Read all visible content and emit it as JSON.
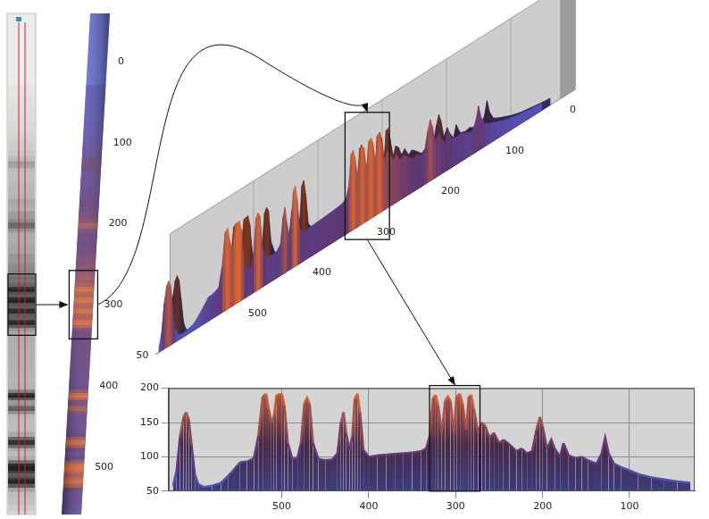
{
  "chart_data": {
    "type": "line",
    "x": [
      30,
      45,
      60,
      75,
      90,
      100,
      110,
      118,
      124,
      128,
      132,
      138,
      148,
      155,
      162,
      170,
      176,
      180,
      186,
      190,
      195,
      200,
      203,
      207,
      212,
      218,
      224,
      230,
      238,
      245,
      250,
      256,
      261,
      266,
      270,
      274,
      279,
      282,
      285,
      288,
      292,
      295,
      299,
      302,
      306,
      309,
      312,
      316,
      320,
      323,
      326,
      330,
      334,
      340,
      350,
      360,
      370,
      380,
      390,
      400,
      406,
      410,
      413,
      416,
      419,
      422,
      426,
      429,
      432,
      436,
      442,
      450,
      458,
      464,
      468,
      471,
      474,
      478,
      482,
      488,
      493,
      497,
      500,
      506,
      509,
      512,
      515,
      518,
      522,
      527,
      532,
      540,
      548,
      556,
      562,
      570,
      580,
      590,
      596,
      600,
      604,
      607,
      610,
      613,
      617,
      621,
      625
    ],
    "values": [
      62,
      64,
      67,
      70,
      75,
      80,
      85,
      90,
      105,
      128,
      105,
      90,
      95,
      100,
      98,
      102,
      120,
      100,
      112,
      125,
      112,
      145,
      158,
      140,
      108,
      105,
      112,
      108,
      118,
      125,
      120,
      135,
      128,
      145,
      150,
      135,
      170,
      190,
      188,
      140,
      178,
      192,
      188,
      135,
      182,
      188,
      182,
      135,
      175,
      190,
      186,
      130,
      112,
      108,
      106,
      105,
      104,
      103,
      102,
      100,
      110,
      165,
      192,
      185,
      130,
      110,
      135,
      165,
      150,
      105,
      96,
      95,
      97,
      120,
      178,
      186,
      178,
      120,
      98,
      97,
      120,
      175,
      192,
      190,
      160,
      150,
      170,
      192,
      188,
      130,
      98,
      93,
      92,
      80,
      72,
      62,
      58,
      56,
      60,
      75,
      120,
      155,
      165,
      158,
      130,
      80,
      58
    ],
    "xlim": [
      25,
      630
    ],
    "xticks": [
      100,
      200,
      300,
      400,
      500
    ],
    "ylim": [
      50,
      200
    ],
    "yticks": [
      50,
      100,
      150,
      200
    ],
    "grid": true,
    "highlight_range": [
      272,
      330
    ]
  },
  "surface_3d": {
    "xlim": [
      0,
      630
    ],
    "xticks": [
      0,
      100,
      200,
      300,
      400,
      500
    ],
    "zlim": [
      50,
      200
    ],
    "zticks": [
      50
    ]
  },
  "lane_3d": {
    "ylim": [
      0,
      560
    ],
    "yticks": [
      0,
      100,
      200,
      300,
      400,
      500
    ]
  }
}
